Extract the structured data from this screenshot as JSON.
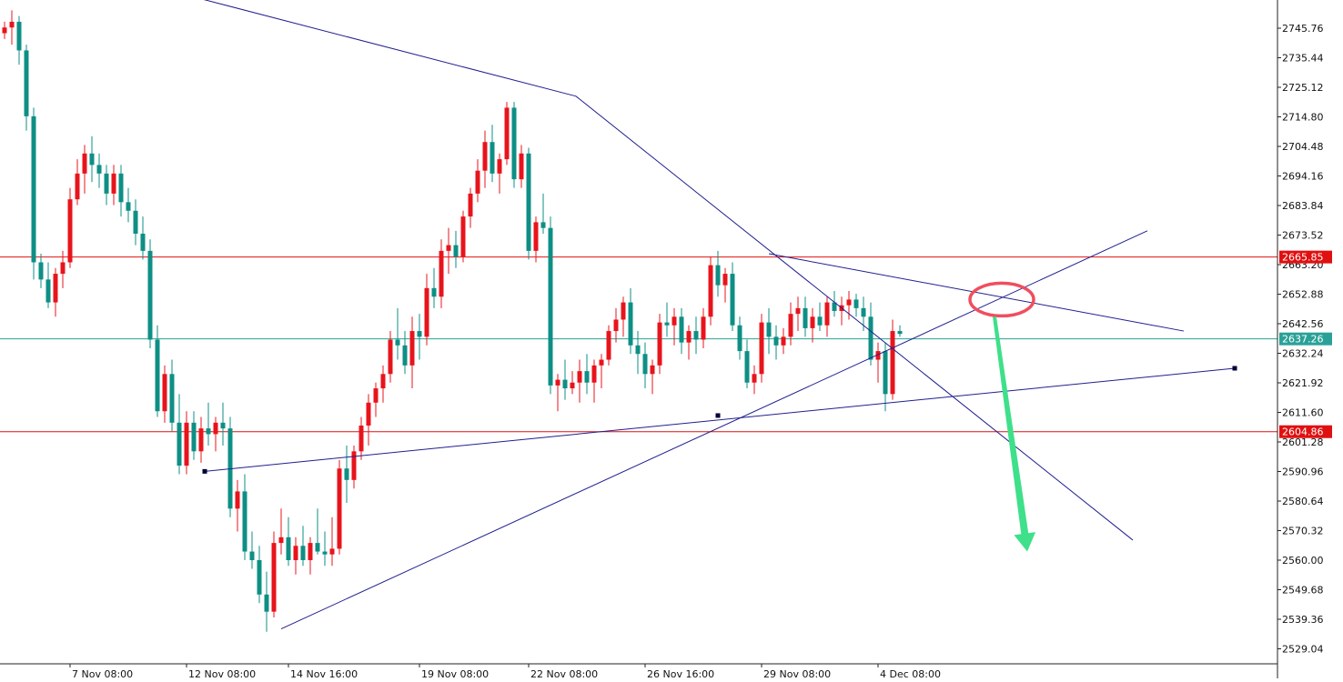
{
  "chart_data": {
    "type": "candlestick",
    "title": "",
    "xlabel": "",
    "ylabel": "",
    "ylim": [
      2523.8,
      2755.6
    ],
    "grid": false,
    "legend": "none",
    "colors": {
      "up": "#e8141c",
      "down": "#0e8f85",
      "trendline": "#1f1f8f",
      "level_line": "#e01010",
      "current_line": "#2aa198",
      "arrow": "#3ee08a",
      "highlight_ellipse": "#f04e5e",
      "axis": "#222222"
    },
    "y_ticks": [
      "2745.76",
      "2735.44",
      "2725.12",
      "2714.80",
      "2704.48",
      "2694.16",
      "2683.84",
      "2673.52",
      "2663.20",
      "2652.88",
      "2642.56",
      "2632.24",
      "2621.92",
      "2611.60",
      "2601.28",
      "2590.96",
      "2580.64",
      "2570.32",
      "2560.00",
      "2549.68",
      "2539.36",
      "2529.04"
    ],
    "y_tick_values": [
      2745.76,
      2735.44,
      2725.12,
      2714.8,
      2704.48,
      2694.16,
      2683.84,
      2673.52,
      2663.2,
      2652.88,
      2642.56,
      2632.24,
      2621.92,
      2611.6,
      2601.28,
      2590.96,
      2580.64,
      2570.32,
      2560.0,
      2549.68,
      2539.36,
      2529.04
    ],
    "x_tick_labels": [
      "7 Nov 08:00",
      "12 Nov 08:00",
      "14 Nov 16:00",
      "19 Nov 08:00",
      "22 Nov 08:00",
      "26 Nov 16:00",
      "29 Nov 08:00",
      "4 Dec 08:00"
    ],
    "x_tick_bars": [
      9,
      25,
      39,
      57,
      72,
      88,
      104,
      120
    ],
    "level_lines": [
      {
        "label": "2665.85",
        "value": 2665.85
      },
      {
        "label": "2604.86",
        "value": 2604.86
      }
    ],
    "current_price": {
      "label": "2637.26",
      "value": 2637.26
    },
    "trendlines": [
      {
        "x": [
          27,
          78.5
        ],
        "y": [
          2756,
          2722
        ]
      },
      {
        "x": [
          78.5,
          155
        ],
        "y": [
          2722,
          2567
        ]
      },
      {
        "x": [
          38,
          157
        ],
        "y": [
          2536,
          2675
        ]
      },
      {
        "x": [
          27.5,
          169
        ],
        "y": [
          2591,
          2627
        ]
      },
      {
        "x": [
          105,
          162
        ],
        "y": [
          2667,
          2640
        ]
      }
    ],
    "anchors": [
      {
        "x": 27.5,
        "y": 2591
      },
      {
        "x": 98,
        "y": 2610.5
      },
      {
        "x": 169,
        "y": 2627
      }
    ],
    "annotations": {
      "ellipse": {
        "x": 137,
        "y": 2651
      },
      "arrow": {
        "x": [
          136,
          140.5
        ],
        "y": [
          2645,
          2563
        ]
      }
    },
    "candles": [
      [
        2744,
        2748,
        2742,
        2746
      ],
      [
        2746,
        2752,
        2740,
        2748
      ],
      [
        2748,
        2750,
        2733,
        2738
      ],
      [
        2738,
        2740,
        2710,
        2715
      ],
      [
        2715,
        2718,
        2658,
        2664
      ],
      [
        2664,
        2667,
        2655,
        2658
      ],
      [
        2658,
        2664,
        2648,
        2650
      ],
      [
        2650,
        2662,
        2645,
        2660
      ],
      [
        2660,
        2668,
        2655,
        2664
      ],
      [
        2664,
        2690,
        2662,
        2686
      ],
      [
        2686,
        2700,
        2684,
        2695
      ],
      [
        2695,
        2705,
        2688,
        2702
      ],
      [
        2702,
        2708,
        2692,
        2698
      ],
      [
        2698,
        2702,
        2690,
        2695
      ],
      [
        2695,
        2698,
        2684,
        2688
      ],
      [
        2688,
        2698,
        2684,
        2695
      ],
      [
        2695,
        2698,
        2680,
        2685
      ],
      [
        2685,
        2690,
        2678,
        2682
      ],
      [
        2682,
        2686,
        2670,
        2674
      ],
      [
        2674,
        2680,
        2665,
        2668
      ],
      [
        2668,
        2672,
        2634,
        2637
      ],
      [
        2637,
        2642,
        2610,
        2612
      ],
      [
        2612,
        2628,
        2608,
        2625
      ],
      [
        2625,
        2630,
        2605,
        2608
      ],
      [
        2608,
        2618,
        2590,
        2593
      ],
      [
        2593,
        2612,
        2590,
        2608
      ],
      [
        2608,
        2612,
        2595,
        2598
      ],
      [
        2598,
        2610,
        2594,
        2606
      ],
      [
        2606,
        2615,
        2600,
        2604
      ],
      [
        2604,
        2610,
        2598,
        2608
      ],
      [
        2608,
        2615,
        2600,
        2606
      ],
      [
        2606,
        2610,
        2575,
        2578
      ],
      [
        2578,
        2588,
        2570,
        2584
      ],
      [
        2584,
        2590,
        2560,
        2563
      ],
      [
        2563,
        2570,
        2557,
        2560
      ],
      [
        2560,
        2565,
        2545,
        2548
      ],
      [
        2548,
        2556,
        2535,
        2542
      ],
      [
        2542,
        2570,
        2540,
        2566
      ],
      [
        2566,
        2578,
        2562,
        2568
      ],
      [
        2568,
        2575,
        2558,
        2560
      ],
      [
        2560,
        2568,
        2555,
        2565
      ],
      [
        2565,
        2572,
        2558,
        2560
      ],
      [
        2560,
        2568,
        2555,
        2566
      ],
      [
        2566,
        2578,
        2562,
        2563
      ],
      [
        2563,
        2570,
        2558,
        2562
      ],
      [
        2562,
        2575,
        2558,
        2564
      ],
      [
        2564,
        2595,
        2562,
        2592
      ],
      [
        2592,
        2600,
        2580,
        2588
      ],
      [
        2588,
        2600,
        2585,
        2598
      ],
      [
        2598,
        2610,
        2595,
        2607
      ],
      [
        2607,
        2618,
        2600,
        2615
      ],
      [
        2615,
        2622,
        2610,
        2620
      ],
      [
        2620,
        2628,
        2615,
        2625
      ],
      [
        2625,
        2640,
        2622,
        2637
      ],
      [
        2637,
        2648,
        2630,
        2635
      ],
      [
        2635,
        2640,
        2625,
        2628
      ],
      [
        2628,
        2645,
        2620,
        2640
      ],
      [
        2640,
        2646,
        2630,
        2638
      ],
      [
        2638,
        2660,
        2635,
        2655
      ],
      [
        2655,
        2662,
        2648,
        2652
      ],
      [
        2652,
        2672,
        2648,
        2668
      ],
      [
        2668,
        2676,
        2660,
        2670
      ],
      [
        2670,
        2675,
        2662,
        2666
      ],
      [
        2666,
        2682,
        2664,
        2680
      ],
      [
        2680,
        2690,
        2676,
        2688
      ],
      [
        2688,
        2700,
        2685,
        2696
      ],
      [
        2696,
        2710,
        2690,
        2706
      ],
      [
        2706,
        2712,
        2692,
        2695
      ],
      [
        2695,
        2702,
        2688,
        2700
      ],
      [
        2700,
        2720,
        2698,
        2718
      ],
      [
        2718,
        2720,
        2690,
        2693
      ],
      [
        2693,
        2705,
        2690,
        2702
      ],
      [
        2702,
        2704,
        2665,
        2668
      ],
      [
        2668,
        2680,
        2664,
        2678
      ],
      [
        2678,
        2688,
        2674,
        2676
      ],
      [
        2676,
        2680,
        2618,
        2621
      ],
      [
        2621,
        2625,
        2612,
        2623
      ],
      [
        2623,
        2630,
        2616,
        2620
      ],
      [
        2620,
        2626,
        2618,
        2622
      ],
      [
        2622,
        2630,
        2615,
        2626
      ],
      [
        2626,
        2632,
        2618,
        2622
      ],
      [
        2622,
        2630,
        2615,
        2628
      ],
      [
        2628,
        2632,
        2620,
        2630
      ],
      [
        2630,
        2642,
        2628,
        2640
      ],
      [
        2640,
        2648,
        2636,
        2644
      ],
      [
        2644,
        2652,
        2638,
        2650
      ],
      [
        2650,
        2655,
        2632,
        2635
      ],
      [
        2635,
        2640,
        2625,
        2632
      ],
      [
        2632,
        2636,
        2620,
        2625
      ],
      [
        2625,
        2630,
        2618,
        2628
      ],
      [
        2628,
        2646,
        2625,
        2643
      ],
      [
        2643,
        2650,
        2638,
        2642
      ],
      [
        2642,
        2648,
        2635,
        2645
      ],
      [
        2645,
        2648,
        2632,
        2636
      ],
      [
        2636,
        2642,
        2630,
        2640
      ],
      [
        2640,
        2645,
        2632,
        2637
      ],
      [
        2637,
        2648,
        2634,
        2645
      ],
      [
        2645,
        2666,
        2642,
        2663
      ],
      [
        2663,
        2668,
        2652,
        2656
      ],
      [
        2656,
        2662,
        2650,
        2660
      ],
      [
        2660,
        2664,
        2640,
        2642
      ],
      [
        2642,
        2645,
        2630,
        2633
      ],
      [
        2633,
        2637,
        2620,
        2622
      ],
      [
        2622,
        2628,
        2618,
        2625
      ],
      [
        2625,
        2646,
        2622,
        2643
      ],
      [
        2643,
        2648,
        2632,
        2638
      ],
      [
        2638,
        2642,
        2630,
        2635
      ],
      [
        2635,
        2641,
        2632,
        2638
      ],
      [
        2638,
        2650,
        2635,
        2646
      ],
      [
        2646,
        2652,
        2640,
        2648
      ],
      [
        2648,
        2652,
        2638,
        2641
      ],
      [
        2641,
        2648,
        2636,
        2645
      ],
      [
        2645,
        2650,
        2640,
        2642
      ],
      [
        2642,
        2652,
        2638,
        2650
      ],
      [
        2650,
        2654,
        2645,
        2647
      ],
      [
        2647,
        2652,
        2642,
        2649
      ],
      [
        2649,
        2654,
        2644,
        2651
      ],
      [
        2651,
        2653,
        2645,
        2648
      ],
      [
        2648,
        2652,
        2640,
        2645
      ],
      [
        2645,
        2650,
        2628,
        2630
      ],
      [
        2630,
        2636,
        2622,
        2633
      ],
      [
        2633,
        2636,
        2612,
        2618
      ],
      [
        2618,
        2644,
        2616,
        2640
      ],
      [
        2640,
        2642,
        2638,
        2639
      ]
    ]
  }
}
